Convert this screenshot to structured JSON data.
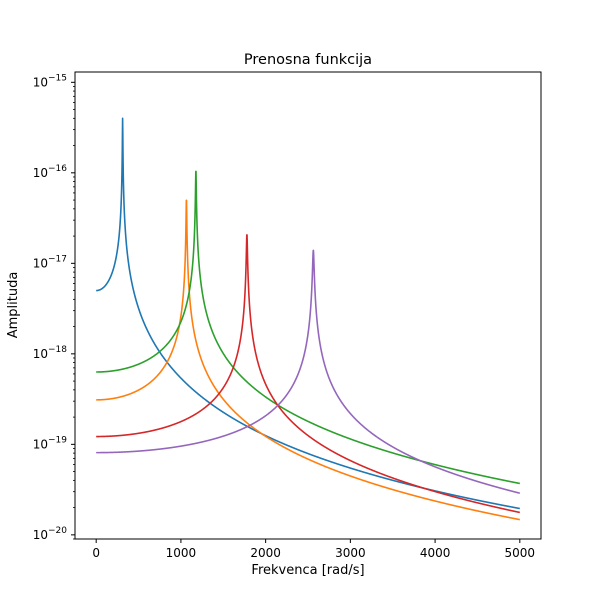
{
  "chart_data": {
    "type": "line",
    "title": "Prenosna funkcija",
    "xlabel": "Frekvenca [rad/s]",
    "ylabel": "Amplituda",
    "xlim": [
      -250,
      5250
    ],
    "ylim": [
      9e-21,
      1.3e-15
    ],
    "yscale": "log",
    "grid": false,
    "x_ticks": [
      0,
      1000,
      2000,
      3000,
      4000,
      5000
    ],
    "x_tick_labels": [
      "0",
      "1000",
      "2000",
      "3000",
      "4000",
      "5000"
    ],
    "y_ticks": [
      1e-20,
      1e-19,
      1e-18,
      1e-17,
      1e-16,
      1e-15
    ],
    "y_tick_labels": [
      {
        "base": "10",
        "exp": "−20"
      },
      {
        "base": "10",
        "exp": "−19"
      },
      {
        "base": "10",
        "exp": "−18"
      },
      {
        "base": "10",
        "exp": "−17"
      },
      {
        "base": "10",
        "exp": "−16"
      },
      {
        "base": "10",
        "exp": "−15"
      }
    ],
    "series": [
      {
        "color": "#1f77b4",
        "resonance": 312,
        "peak": 8e-16,
        "dc": 5e-18,
        "tail": 1.9e-20
      },
      {
        "color": "#ff7f0e",
        "resonance": 1065,
        "peak": 5.2e-17,
        "dc": 3.1e-19,
        "tail": 1.5e-20
      },
      {
        "color": "#2ca02c",
        "resonance": 1177,
        "peak": 1.08e-16,
        "dc": 6.3e-19,
        "tail": 3.7e-20
      },
      {
        "color": "#d62728",
        "resonance": 1779,
        "peak": 2.1e-17,
        "dc": 1.22e-19,
        "tail": 1.8e-20
      },
      {
        "color": "#9467bd",
        "resonance": 2563,
        "peak": 1.4e-17,
        "dc": 8.1e-20,
        "tail": 2.9e-20
      }
    ]
  }
}
